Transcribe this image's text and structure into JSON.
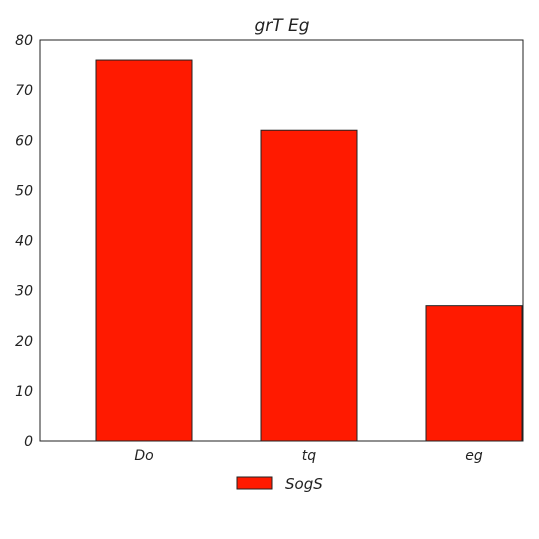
{
  "chart_data": {
    "type": "bar",
    "title": "grT Eg",
    "categories": [
      "Do",
      "tq",
      "eg"
    ],
    "series": [
      {
        "name": "SogS",
        "values": [
          76,
          62,
          27
        ],
        "color": "#ff1a00"
      }
    ],
    "ylim": [
      0,
      80
    ],
    "yticks": [
      0,
      10,
      20,
      30,
      40,
      50,
      60,
      70,
      80
    ],
    "grid": false,
    "legend_position": "bottom-center"
  }
}
